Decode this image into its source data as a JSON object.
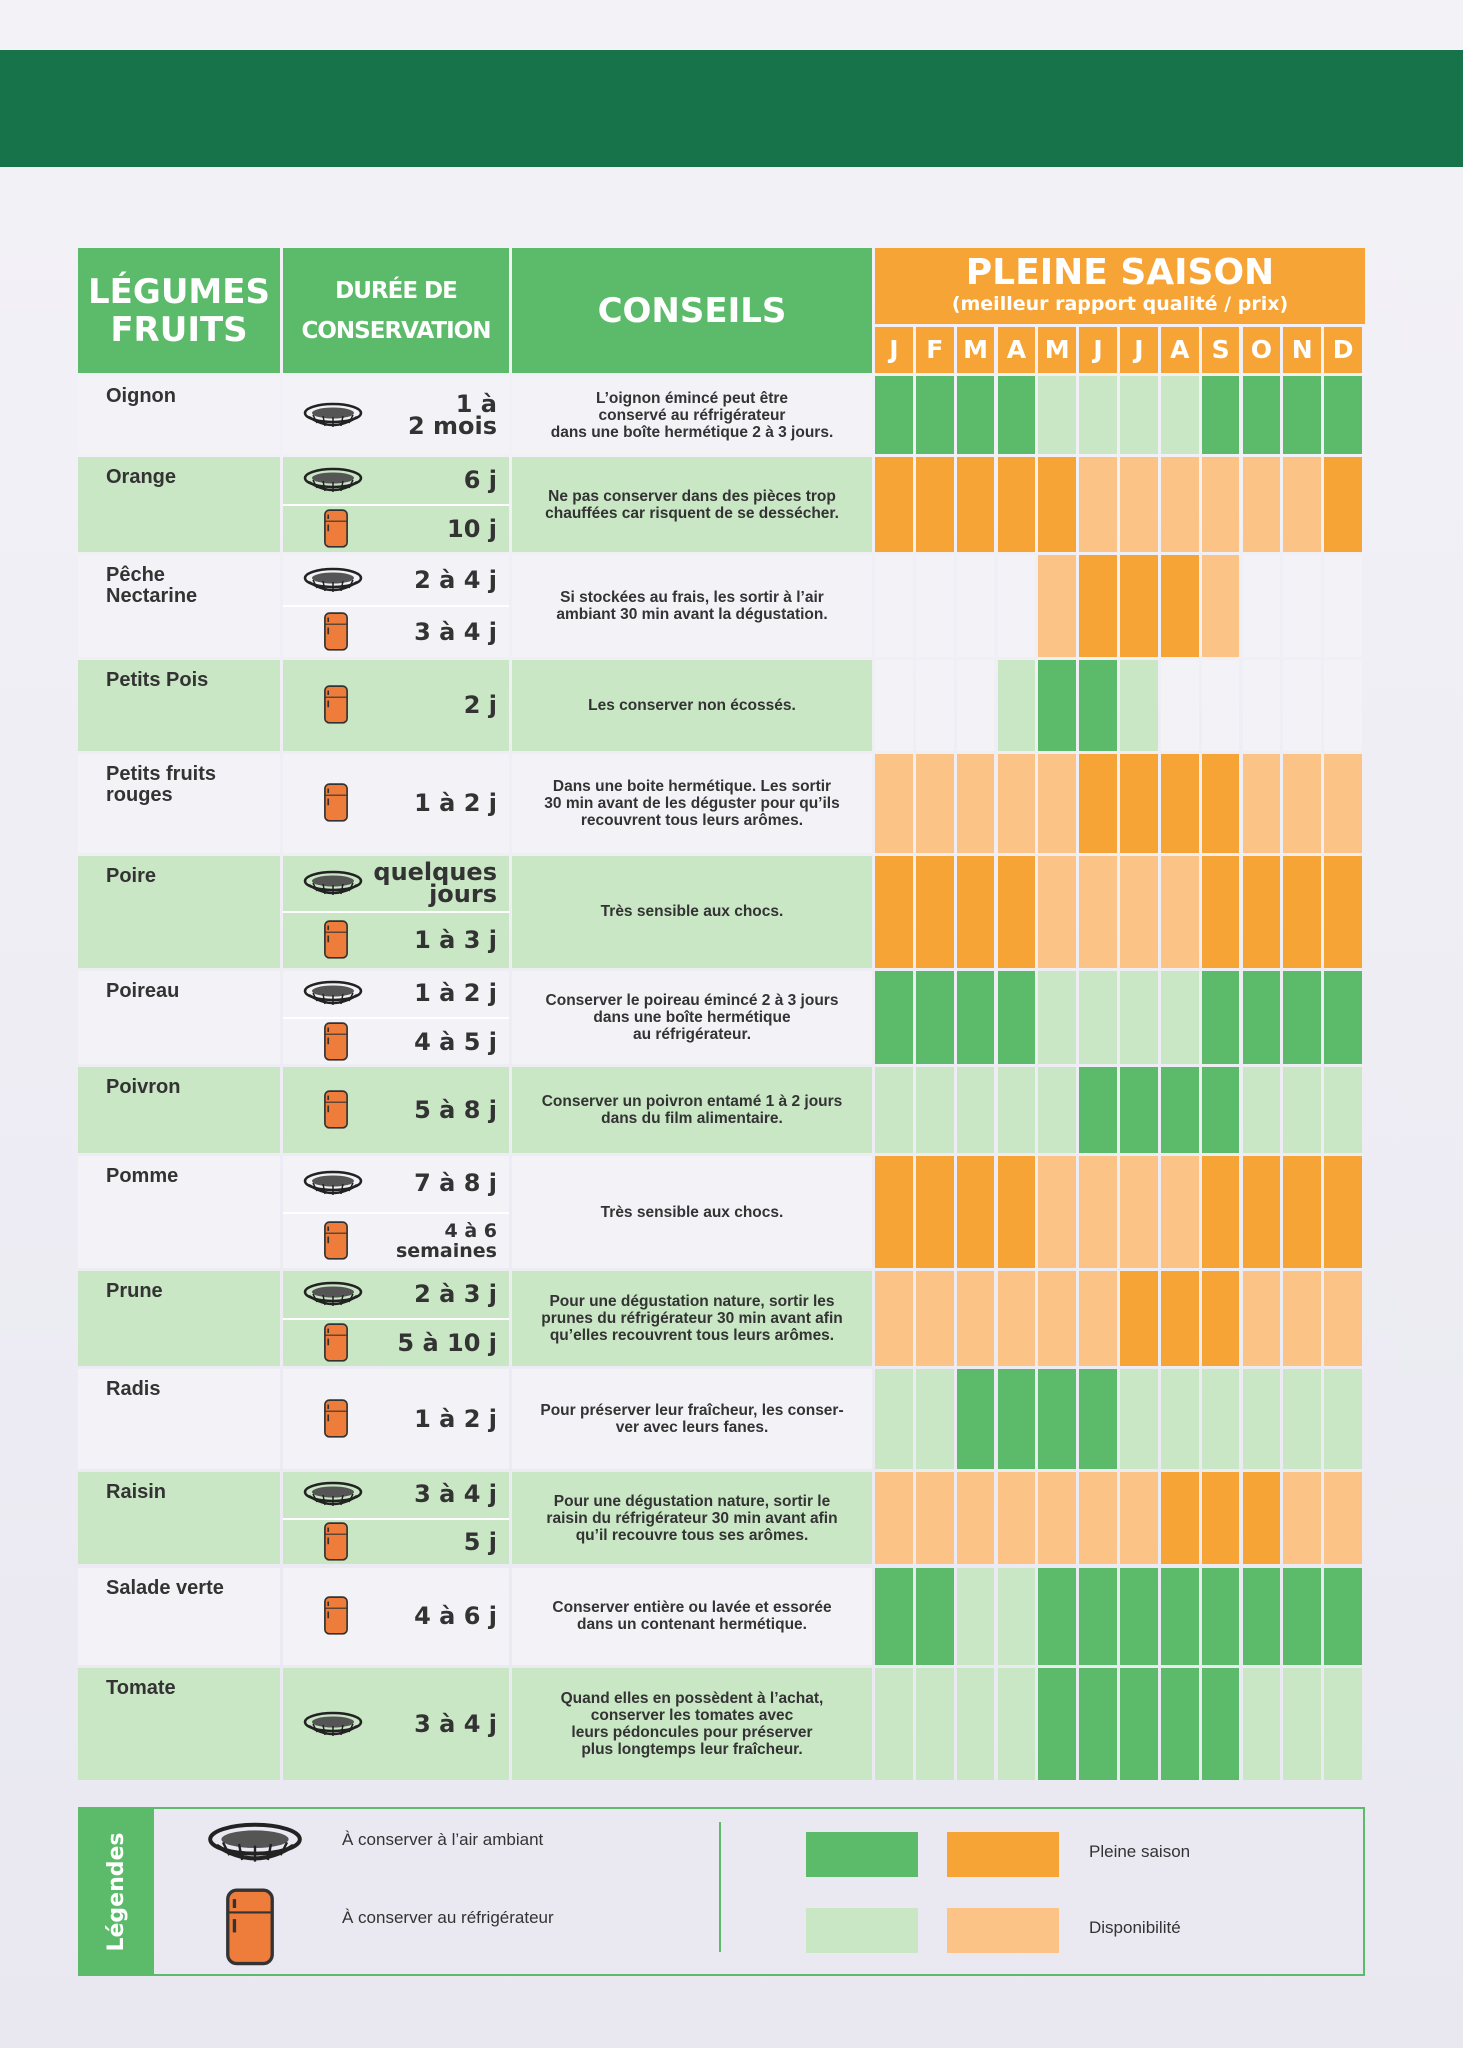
{
  "header": {
    "col_name": "LÉGUMES\nFRUITS",
    "col_duration": "DURÉE DE\nCONSERVATION",
    "col_advice": "CONSEILS",
    "season_title": "PLEINE SAISON",
    "season_subtitle": "(meilleur rapport qualité / prix)",
    "months": [
      "J",
      "F",
      "M",
      "A",
      "M",
      "J",
      "J",
      "A",
      "S",
      "O",
      "N",
      "D"
    ]
  },
  "rows": [
    {
      "name": "Oignon",
      "colors": [
        "#5cbb6a",
        "#c9e6c5"
      ],
      "durations": [
        {
          "storage": 0,
          "text": "1 à\n2 mois"
        }
      ],
      "advice": "L’oignon émincé peut être\nconservé au réfrigérateur\ndans une boîte hermétique 2 à 3 jours.",
      "season": [
        2,
        2,
        2,
        2,
        1,
        1,
        1,
        1,
        2,
        2,
        2,
        2
      ]
    },
    {
      "name": "Orange",
      "colors": [
        "#f7a436",
        "#fbc486"
      ],
      "durations": [
        {
          "storage": 0,
          "text": "6 j"
        },
        {
          "storage": 1,
          "text": "10 j"
        }
      ],
      "advice": "Ne pas conserver dans des pièces trop\nchauffées car risquent de se dessécher.",
      "season": [
        2,
        2,
        2,
        2,
        2,
        1,
        1,
        1,
        1,
        1,
        1,
        2
      ]
    },
    {
      "name": "Pêche\nNectarine",
      "colors": [
        "#f7a436",
        "#fbc486"
      ],
      "durations": [
        {
          "storage": 0,
          "text": "2 à 4 j"
        },
        {
          "storage": 1,
          "text": "3 à 4 j"
        }
      ],
      "advice": "Si stockées au frais, les sortir à l’air\nambiant 30 min avant la dégustation.",
      "season": [
        0,
        0,
        0,
        0,
        1,
        2,
        2,
        2,
        1,
        0,
        0,
        0
      ]
    },
    {
      "name": "Petits Pois",
      "colors": [
        "#5cbb6a",
        "#c9e6c5"
      ],
      "durations": [
        {
          "storage": 1,
          "text": "2 j"
        }
      ],
      "advice": "Les conserver non écossés.",
      "season": [
        0,
        0,
        0,
        1,
        2,
        2,
        1,
        0,
        0,
        0,
        0,
        0
      ]
    },
    {
      "name": "Petits fruits\nrouges",
      "colors": [
        "#f7a436",
        "#fbc486"
      ],
      "durations": [
        {
          "storage": 1,
          "text": "1 à 2 j"
        }
      ],
      "advice": "Dans une boite hermétique. Les sortir\n30 min avant de les déguster pour qu’ils\nrecouvrent tous leurs arômes.",
      "season": [
        1,
        1,
        1,
        1,
        1,
        2,
        2,
        2,
        2,
        1,
        1,
        1
      ]
    },
    {
      "name": "Poire",
      "colors": [
        "#f7a436",
        "#fbc486"
      ],
      "durations": [
        {
          "storage": 0,
          "text": "quelques\njours"
        },
        {
          "storage": 1,
          "text": "1 à 3 j"
        }
      ],
      "advice": "Très sensible aux chocs.",
      "season": [
        2,
        2,
        2,
        2,
        1,
        1,
        1,
        1,
        2,
        2,
        2,
        2
      ]
    },
    {
      "name": "Poireau",
      "colors": [
        "#5cbb6a",
        "#c9e6c5"
      ],
      "durations": [
        {
          "storage": 0,
          "text": "1 à 2 j"
        },
        {
          "storage": 1,
          "text": "4 à 5 j"
        }
      ],
      "advice": "Conserver le poireau émincé 2 à 3 jours\ndans une boîte hermétique\nau réfrigérateur.",
      "season": [
        2,
        2,
        2,
        2,
        1,
        1,
        1,
        1,
        2,
        2,
        2,
        2
      ]
    },
    {
      "name": "Poivron",
      "colors": [
        "#5cbb6a",
        "#c9e6c5"
      ],
      "durations": [
        {
          "storage": 1,
          "text": "5 à 8 j"
        }
      ],
      "advice": "Conserver un poivron entamé 1 à 2 jours\ndans du film alimentaire.",
      "season": [
        1,
        1,
        1,
        1,
        1,
        2,
        2,
        2,
        2,
        1,
        1,
        1
      ]
    },
    {
      "name": "Pomme",
      "colors": [
        "#f7a436",
        "#fbc486"
      ],
      "durations": [
        {
          "storage": 0,
          "text": "7 à 8 j"
        },
        {
          "storage": 1,
          "text": "4 à 6\nsemaines"
        }
      ],
      "advice": "Très sensible aux chocs.",
      "season": [
        2,
        2,
        2,
        2,
        1,
        1,
        1,
        1,
        2,
        2,
        2,
        2
      ]
    },
    {
      "name": "Prune",
      "colors": [
        "#f7a436",
        "#fbc486"
      ],
      "durations": [
        {
          "storage": 0,
          "text": "2 à 3 j"
        },
        {
          "storage": 1,
          "text": "5 à 10 j"
        }
      ],
      "advice": "Pour une dégustation nature, sortir les\nprunes du réfrigérateur 30 min avant afin\nqu’elles recouvrent tous leurs arômes.",
      "season": [
        1,
        1,
        1,
        1,
        1,
        1,
        2,
        2,
        2,
        1,
        1,
        1
      ]
    },
    {
      "name": "Radis",
      "colors": [
        "#5cbb6a",
        "#c9e6c5"
      ],
      "durations": [
        {
          "storage": 1,
          "text": "1 à 2 j"
        }
      ],
      "advice": "Pour préserver leur fraîcheur, les conser-\nver avec leurs fanes.",
      "season": [
        1,
        1,
        2,
        2,
        2,
        2,
        1,
        1,
        1,
        1,
        1,
        1
      ]
    },
    {
      "name": "Raisin",
      "colors": [
        "#f7a436",
        "#fbc486"
      ],
      "durations": [
        {
          "storage": 0,
          "text": "3 à 4 j"
        },
        {
          "storage": 1,
          "text": "5 j"
        }
      ],
      "advice": "Pour une dégustation nature, sortir le\nraisin du réfrigérateur 30 min avant afin\nqu’il recouvre tous ses arômes.",
      "season": [
        1,
        1,
        1,
        1,
        1,
        1,
        1,
        2,
        2,
        2,
        1,
        1
      ]
    },
    {
      "name": "Salade verte",
      "colors": [
        "#5cbb6a",
        "#c9e6c5"
      ],
      "durations": [
        {
          "storage": 1,
          "text": "4 à 6 j"
        }
      ],
      "advice": "Conserver entière ou lavée et essorée\ndans un contenant hermétique.",
      "season": [
        2,
        2,
        1,
        1,
        2,
        2,
        2,
        2,
        2,
        2,
        2,
        2
      ]
    },
    {
      "name": "Tomate",
      "colors": [
        "#5cbb6a",
        "#c9e6c5"
      ],
      "durations": [
        {
          "storage": 0,
          "text": "3 à 4 j"
        }
      ],
      "advice": "Quand elles en possèdent à l’achat,\nconserver les tomates avec\nleurs pédoncules pour préserver\nplus longtemps leur fraîcheur.",
      "season": [
        1,
        1,
        1,
        1,
        2,
        2,
        2,
        2,
        2,
        1,
        1,
        1
      ]
    }
  ],
  "legend": {
    "title": "Légendes",
    "storage": [
      "À conserver à l’air ambiant",
      "À conserver au réfrigérateur"
    ],
    "season_labels": [
      "Pleine saison",
      "Disponibilité"
    ],
    "season_colors": [
      [
        "#5cbb6a",
        "#f7a436"
      ],
      [
        "#c9e6c5",
        "#fbc486"
      ]
    ]
  }
}
